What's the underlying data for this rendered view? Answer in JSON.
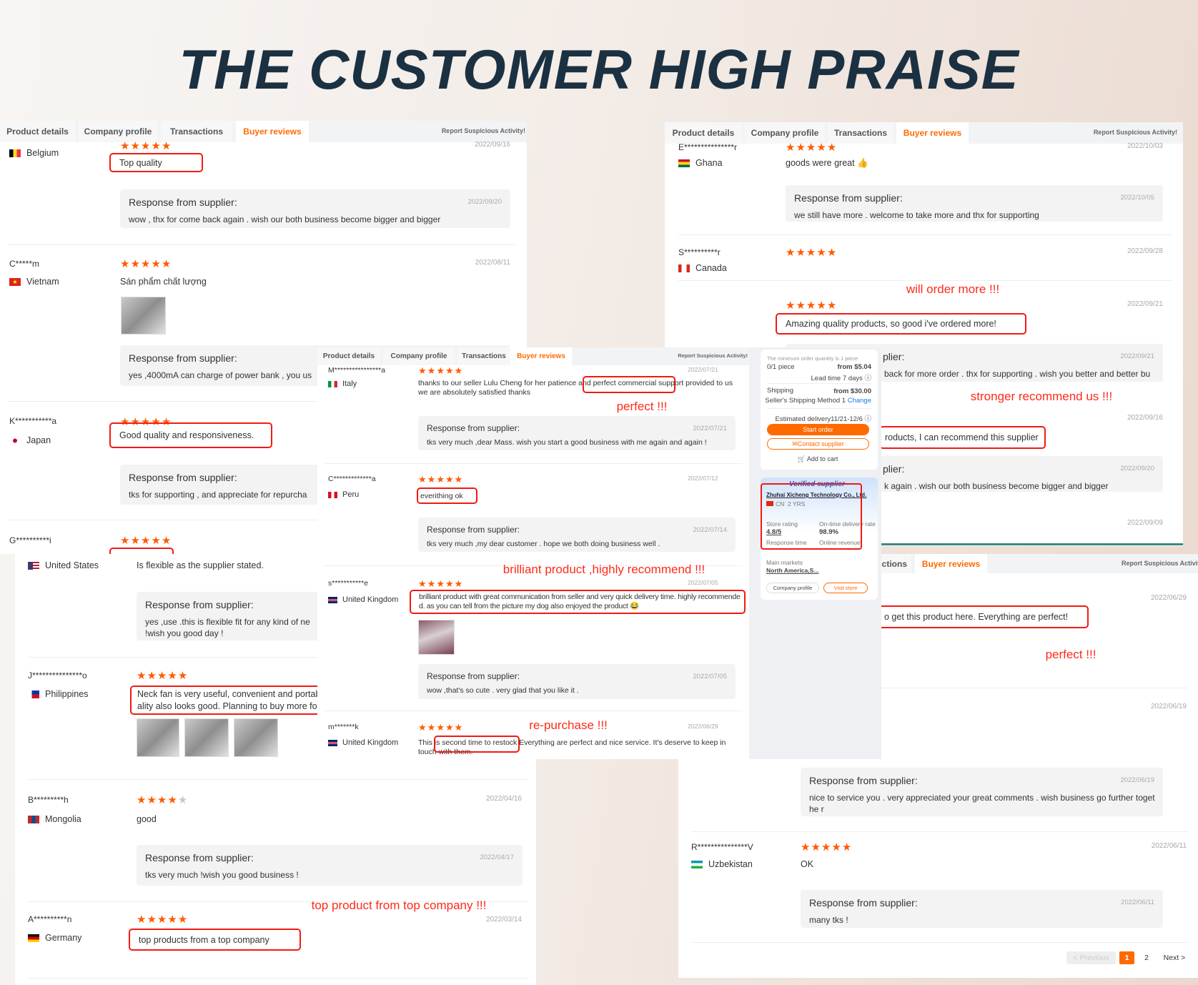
{
  "title": "THE CUSTOMER HIGH PRAISE",
  "tabs": {
    "product_details": "Product details",
    "company_profile": "Company profile",
    "transactions": "Transactions",
    "buyer_reviews": "Buyer reviews",
    "transactions_partial": "ctions"
  },
  "report": "Report Suspicious Activity!",
  "response_label": "Response from supplier:",
  "response_label_partial": "plier:",
  "colors": {
    "accent": "#ff6a00",
    "highlight": "#f21a12",
    "annotation": "#ff2a1a",
    "title": "#1b3142"
  },
  "panel_a": {
    "r1": {
      "country": "Belgium",
      "rating": 5,
      "date": "2022/09/16",
      "text": "Top quality",
      "resp_date": "2022/09/20",
      "resp": "wow , thx for come back again . wish our both business become bigger and bigger"
    },
    "r2": {
      "name": "C*****m",
      "country": "Vietnam",
      "rating": 5,
      "date": "2022/08/11",
      "text": "Sán phẩm chất lượng",
      "resp": "yes ,4000mA can charge of power bank , you us"
    },
    "r3": {
      "name": "K***********a",
      "country": "Japan",
      "rating": 5,
      "text": "Good quality and responsiveness.",
      "resp": "tks for supporting , and appreciate for repurcha"
    },
    "r4": {
      "name": "G**********i",
      "rating": 5
    }
  },
  "panel_b": {
    "r1": {
      "name": "E***************r",
      "country": "Ghana",
      "rating": 5,
      "date": "2022/10/03",
      "text": "goods were great 👍",
      "resp_date": "2022/10/05",
      "resp": "we still have more . welcome to take more and thx for supporting"
    },
    "r2": {
      "name": "S**********r",
      "country": "Canada",
      "rating": 5,
      "date": "2022/09/28"
    },
    "r3": {
      "rating": 5,
      "date": "2022/09/21",
      "text": "Amazing quality products, so good i've ordered more!",
      "resp_date": "2022/09/21",
      "resp": "back for more order . thx for supporting . wish you better and better bu"
    },
    "r4": {
      "date": "2022/09/16",
      "text": "roducts, I can recommend this supplier",
      "resp_date": "2022/09/20",
      "resp": "k again . wish our both business become bigger and bigger"
    },
    "r5": {
      "date": "2022/09/09"
    }
  },
  "panel_c": {
    "r1": {
      "country": "United States",
      "text": "Is flexible as the supplier stated.",
      "resp": "yes ,use .this is flexible fit for any kind of ne\n!wish you good day !"
    },
    "r2": {
      "name": "J***************o",
      "country": "Philippines",
      "rating": 5,
      "text": "Neck fan is very useful, convenient and portab\nality also looks good. Planning to buy more fo"
    },
    "r3": {
      "name": "B*********h",
      "country": "Mongolia",
      "rating": 4,
      "date": "2022/04/16",
      "text": "good",
      "resp_date": "2022/04/17",
      "resp": "tks very much !wish you good business !"
    },
    "r4": {
      "name": "A**********n",
      "country": "Germany",
      "rating": 5,
      "date": "2022/03/14",
      "text": "top products from a top company"
    }
  },
  "panel_d": {
    "r1": {
      "date": "2022/06/29",
      "text": "o get this product here. Everything are perfect!"
    },
    "r2": {
      "date": "2022/06/19",
      "resp_date": "2022/06/19",
      "resp": "nice to service you . very appreciated your great comments . wish business go further togethe r"
    },
    "r3": {
      "name": "R***************V",
      "country": "Uzbekistan",
      "rating": 5,
      "date": "2022/06/11",
      "text": "OK",
      "resp_date": "2022/06/11",
      "resp": "many tks !"
    },
    "pagination": {
      "previous": "< Previous",
      "current": "1",
      "page2": "2",
      "next": "Next >"
    }
  },
  "panel_e": {
    "r1": {
      "name": "M****************a",
      "country": "Italy",
      "rating": 5,
      "date": "2022/07/21",
      "text": "thanks to our seller Lulu Cheng for her patience and perfect commercial support provided to us we are absolutely satisfied thanks",
      "resp_date": "2022/07/21",
      "resp": "tks very much ,dear Mass. wish you start a good business with me again and again !"
    },
    "r2": {
      "name": "C*************a",
      "country": "Peru",
      "rating": 5,
      "date": "2022/07/12",
      "text": "everithing ok",
      "resp_date": "2022/07/14",
      "resp": "tks very much ,my dear customer . hope we both doing business well ."
    },
    "r3": {
      "name": "s***********e",
      "country": "United Kingdom",
      "rating": 5,
      "date": "2022/07/05",
      "text": "brilliant product with great communication from seller and very quick delivery time. highly recommended. as you can tell from the picture my dog also enjoyed the product 😂",
      "resp_date": "2022/07/05",
      "resp": "wow ,that's so cute . very glad that you like it ."
    },
    "r4": {
      "name": "m*******k",
      "country": "United Kingdom",
      "rating": 5,
      "date": "2022/06/29",
      "text": "This is second time to restock Everything are perfect and nice service. It's deserve to keep in touch with them."
    },
    "order": {
      "moq": "The minimum order quantity is 1 piece",
      "qty": "0/1 piece",
      "price": "from $5.04",
      "lead": "Lead time 7 days ⓘ",
      "shipping_label": "Shipping",
      "shipping_price": "from $30.00",
      "method": "Seller's Shipping Method 1",
      "change": "Change",
      "delivery": "Estimated delivery11/21-12/6 ⓘ",
      "start": "Start order",
      "contact": "✉Contact supplier",
      "cart": "🛒 Add to cart"
    },
    "supplier": {
      "badge": "Verified supplier",
      "company": "Zhuhai Xicheng Technology Co., Ltd.",
      "country": "CN",
      "years": "2 YRS",
      "store_rating_label": "Store rating",
      "store_rating": "4.8/5",
      "ontime_label": "On-time delivery rate",
      "ontime": "98.9%",
      "response_label": "Response time",
      "revenue_label": "Online revenue",
      "markets_label": "Main markets",
      "markets": "North America,S...",
      "company_profile": "Company profile",
      "visit_store": "Visit store"
    }
  },
  "annotations": {
    "will_order": "will order more !!!",
    "stronger": "stronger recommend us !!!",
    "perfect1": "perfect !!!",
    "brilliant": "brilliant product ,highly recommend !!!",
    "repurchase": "re-purchase !!!",
    "perfect2": "perfect !!!",
    "top": "top product from top company !!!"
  }
}
